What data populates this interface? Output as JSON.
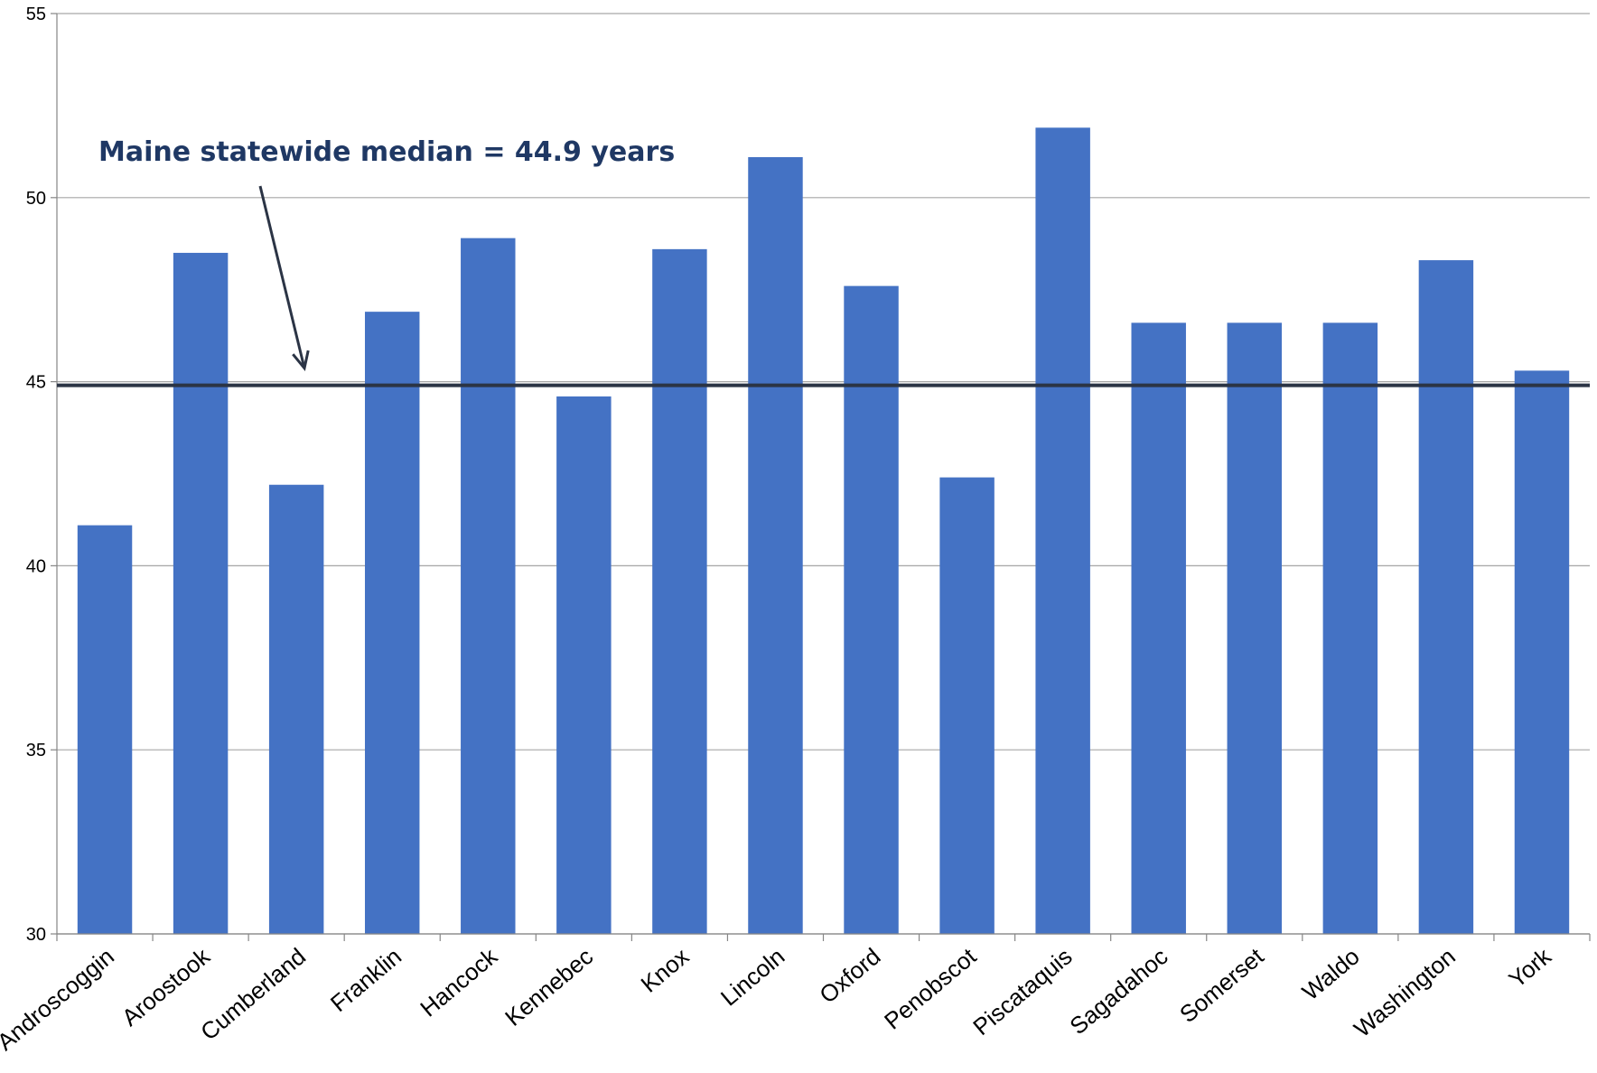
{
  "chart_data": {
    "type": "bar",
    "categories": [
      "Androscoggin",
      "Aroostook",
      "Cumberland",
      "Franklin",
      "Hancock",
      "Kennebec",
      "Knox",
      "Lincoln",
      "Oxford",
      "Penobscot",
      "Piscataquis",
      "Sagadahoc",
      "Somerset",
      "Waldo",
      "Washington",
      "York"
    ],
    "values": [
      41.1,
      48.5,
      42.2,
      46.9,
      48.9,
      44.6,
      48.6,
      51.1,
      47.6,
      42.4,
      51.9,
      46.6,
      46.6,
      46.6,
      48.3,
      45.3
    ],
    "ylim": [
      30,
      55
    ],
    "yticks": [
      "30",
      "35",
      "40",
      "45",
      "50",
      "55"
    ],
    "grid": true,
    "reference_line": {
      "value": 44.9
    },
    "annotation": "Maine statewide median = 44.9 years"
  },
  "colors": {
    "bar": "#4472C4",
    "reference_line": "#2B3445",
    "annotation": "#1F3864",
    "grid": "#A6A6A6",
    "axis": "#868686"
  }
}
